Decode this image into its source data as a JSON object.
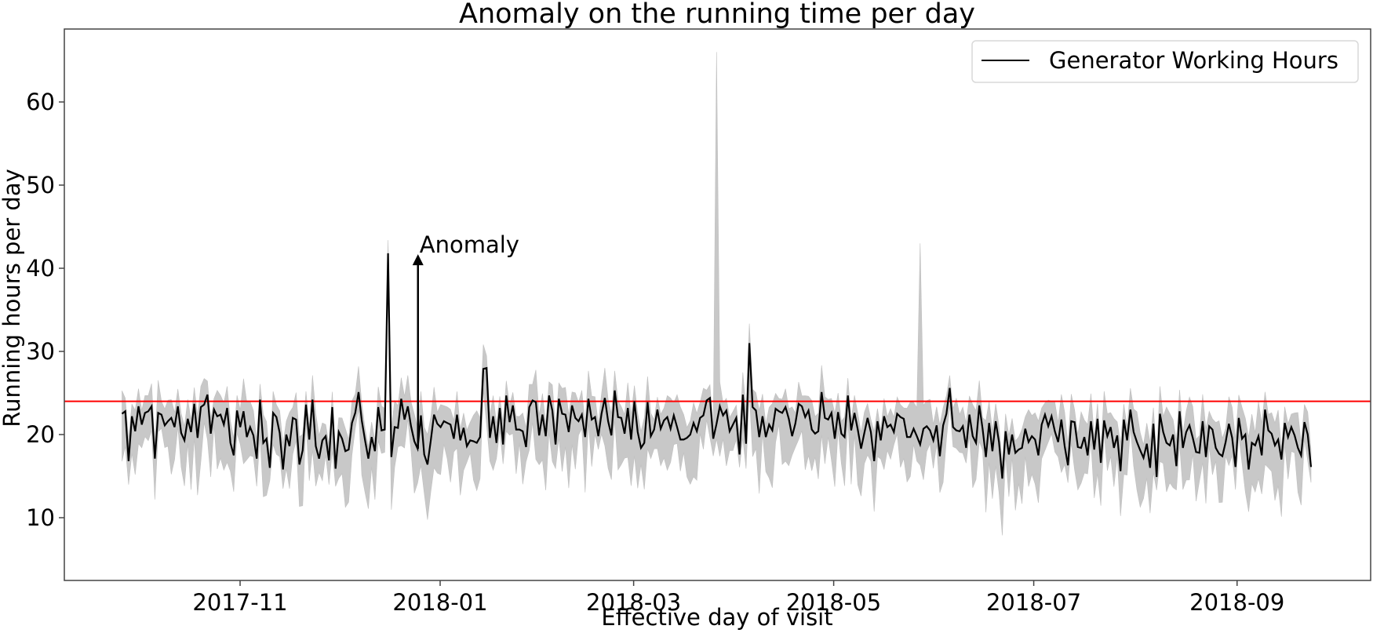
{
  "chart_data": {
    "type": "line",
    "title": "Anomaly on the running time per day",
    "xlabel": "Effective day of visit",
    "ylabel": "Running hours per day",
    "x_start": "2017-09-26",
    "x_step_days": 2,
    "x_ticks": [
      "2017-11",
      "2018-01",
      "2018-03",
      "2018-05",
      "2018-07",
      "2018-09"
    ],
    "y_ticks": [
      10,
      20,
      30,
      40,
      50,
      60
    ],
    "ylim": [
      2.5,
      68.8
    ],
    "grid": false,
    "legend": {
      "position": "upper right",
      "entries": [
        "Generator Working Hours"
      ]
    },
    "threshold": {
      "value": 24,
      "color": "#ff0000"
    },
    "annotation": {
      "text": "Anomaly",
      "date": "2017-12-25",
      "value": 41.5
    },
    "series": [
      {
        "name": "Generator Working Hours",
        "color": "#000000",
        "values": [
          22.5,
          22.8,
          16.8,
          22.2,
          20.4,
          23.4,
          21.2,
          22.6,
          22.8,
          23.4,
          17.1,
          22.6,
          22.4,
          21.1,
          21.6,
          22.0,
          20.9,
          23.4,
          20.2,
          19.3,
          21.9,
          20.3,
          23.7,
          19.6,
          23.3,
          23.6,
          24.8,
          20.1,
          23.0,
          22.2,
          22.4,
          21.2,
          23.2,
          19.0,
          17.5,
          22.9,
          20.9,
          22.8,
          19.7,
          20.9,
          19.9,
          17.1,
          24.2,
          19.0,
          19.5,
          16.0,
          22.6,
          22.1,
          20.2,
          15.8,
          20.0,
          18.6,
          22.0,
          21.8,
          16.4,
          18.1,
          23.6,
          19.4,
          24.2,
          18.6,
          17.1,
          19.3,
          19.8,
          16.9,
          23.3,
          15.9,
          20.3,
          19.5,
          18.0,
          18.2,
          21.4,
          22.6,
          25.1,
          21.7,
          19.3,
          17.1,
          19.7,
          18.0,
          23.3,
          20.5,
          20.6,
          41.8,
          17.3,
          20.9,
          20.8,
          24.3,
          21.8,
          23.4,
          21.0,
          19.2,
          18.3,
          22.3,
          17.6,
          16.4,
          19.3,
          22.4,
          21.3,
          20.9,
          21.6,
          21.4,
          21.2,
          19.5,
          22.4,
          19.3,
          20.8,
          18.6,
          19.3,
          19.2,
          19.0,
          19.7,
          27.9,
          28.0,
          19.6,
          22.2,
          19.0,
          23.2,
          18.8,
          24.7,
          21.5,
          23.5,
          20.6,
          20.6,
          20.4,
          18.5,
          23.3,
          24.1,
          23.9,
          19.9,
          22.4,
          19.8,
          24.7,
          22.9,
          18.8,
          24.3,
          22.5,
          22.4,
          20.3,
          23.5,
          22.0,
          21.6,
          22.4,
          19.7,
          24.3,
          21.8,
          22.1,
          19.8,
          22.5,
          24.4,
          21.6,
          19.9,
          25.3,
          22.1,
          22.0,
          20.1,
          23.2,
          19.4,
          24.0,
          20.3,
          18.4,
          19.0,
          23.9,
          19.8,
          20.6,
          23.0,
          20.7,
          21.7,
          22.1,
          20.7,
          22.3,
          20.9,
          19.4,
          19.4,
          19.6,
          20.0,
          21.4,
          20.4,
          22.0,
          22.3,
          24.1,
          24.4,
          19.5,
          21.3,
          23.4,
          22.3,
          22.9,
          20.4,
          21.2,
          22.0,
          17.6,
          24.8,
          18.9,
          31.0,
          23.3,
          22.9,
          19.7,
          22.2,
          19.7,
          21.2,
          20.5,
          23.1,
          22.8,
          22.6,
          23.3,
          21.9,
          19.8,
          21.3,
          23.7,
          23.4,
          22.1,
          22.9,
          20.6,
          20.1,
          20.4,
          25.1,
          22.0,
          21.8,
          22.6,
          19.5,
          22.7,
          20.1,
          19.7,
          24.7,
          20.5,
          22.6,
          20.6,
          18.3,
          20.2,
          22.0,
          20.3,
          16.8,
          21.6,
          19.3,
          22.2,
          20.9,
          21.2,
          20.3,
          22.5,
          22.1,
          21.9,
          19.7,
          19.7,
          20.7,
          19.8,
          18.8,
          20.7,
          21.0,
          20.5,
          19.3,
          21.1,
          17.4,
          21.1,
          22.5,
          25.6,
          20.9,
          20.5,
          20.4,
          21.0,
          18.4,
          22.4,
          19.8,
          19.0,
          23.5,
          20.7,
          17.3,
          21.4,
          18.0,
          21.6,
          19.1,
          14.7,
          20.4,
          17.6,
          20.0,
          17.8,
          18.2,
          18.4,
          20.7,
          19.1,
          19.8,
          19.4,
          17.5,
          21.2,
          22.4,
          21.0,
          22.2,
          20.4,
          19.1,
          21.8,
          18.6,
          16.3,
          21.6,
          21.5,
          18.5,
          18.4,
          19.7,
          17.5,
          21.6,
          18.2,
          21.9,
          16.6,
          21.7,
          19.8,
          20.9,
          18.4,
          19.9,
          15.6,
          21.8,
          19.3,
          23.0,
          20.3,
          19.1,
          18.1,
          17.2,
          18.9,
          16.0,
          21.3,
          14.9,
          22.5,
          20.3,
          19.0,
          18.7,
          20.0,
          16.2,
          22.8,
          18.4,
          20.3,
          21.1,
          19.6,
          17.9,
          17.8,
          21.6,
          17.3,
          21.0,
          20.6,
          18.4,
          17.7,
          17.4,
          19.1,
          21.3,
          19.6,
          16.1,
          22.0,
          19.5,
          20.0,
          15.8,
          19.0,
          18.7,
          19.8,
          17.5,
          23.0,
          20.5,
          20.1,
          18.7,
          19.4,
          17.0,
          21.4,
          19.7,
          20.9,
          19.9,
          18.4,
          17.5,
          21.5,
          20.0,
          16.1
        ]
      }
    ],
    "band": {
      "name": "confidence band",
      "color": "#cccccc",
      "upper_spikes": [
        {
          "index": 90,
          "value": 66.0
        },
        {
          "index": 121,
          "value": 43.0
        },
        {
          "index": 231,
          "value": 46.8
        }
      ],
      "lower_spikes": [
        {
          "index": 228,
          "value": 5.9
        }
      ]
    }
  }
}
